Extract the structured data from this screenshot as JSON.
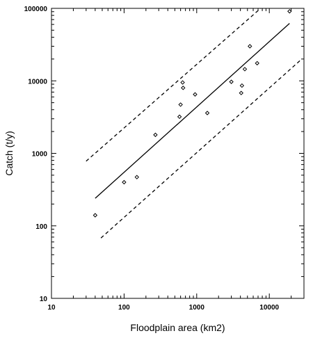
{
  "chart_data": {
    "type": "scatter",
    "title": "",
    "xlabel": "Floodplain area (km2)",
    "ylabel": "Catch (t/y)",
    "x_scale": "log",
    "y_scale": "log",
    "xlim": [
      10,
      30000
    ],
    "ylim": [
      10,
      100000
    ],
    "x_ticks": [
      "10",
      "100",
      "1000",
      "10000"
    ],
    "y_ticks": [
      "10",
      "100",
      "1000",
      "10000",
      "100000"
    ],
    "grid": false,
    "legend": "none",
    "points": [
      {
        "x": 40,
        "y": 140
      },
      {
        "x": 100,
        "y": 400
      },
      {
        "x": 150,
        "y": 470
      },
      {
        "x": 270,
        "y": 1800
      },
      {
        "x": 580,
        "y": 3200
      },
      {
        "x": 600,
        "y": 4700
      },
      {
        "x": 640,
        "y": 9500
      },
      {
        "x": 650,
        "y": 8000
      },
      {
        "x": 950,
        "y": 6500
      },
      {
        "x": 1400,
        "y": 3600
      },
      {
        "x": 3000,
        "y": 9700
      },
      {
        "x": 4100,
        "y": 6800
      },
      {
        "x": 4200,
        "y": 8600
      },
      {
        "x": 4600,
        "y": 14500
      },
      {
        "x": 5400,
        "y": 30000
      },
      {
        "x": 6800,
        "y": 17500
      },
      {
        "x": 19000,
        "y": 91000
      }
    ],
    "lines": [
      {
        "style": "solid",
        "x": [
          40,
          19000
        ],
        "y": [
          240,
          62000
        ]
      },
      {
        "style": "dashed",
        "x": [
          30,
          7600
        ],
        "y": [
          780,
          100000
        ]
      },
      {
        "style": "dashed",
        "x": [
          48,
          28000
        ],
        "y": [
          68,
          20000
        ]
      }
    ],
    "colors": {
      "marks": "#000000",
      "background": "#ffffff"
    }
  }
}
